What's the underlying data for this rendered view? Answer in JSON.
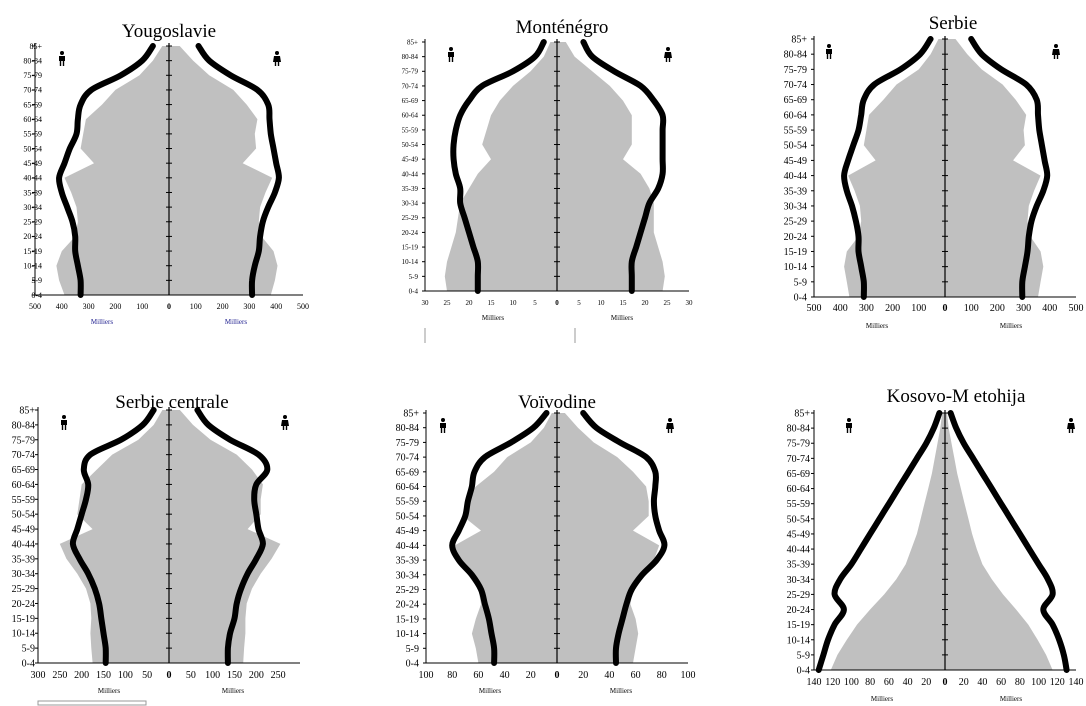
{
  "colors": {
    "background": "#ffffff",
    "area_fill": "#c0c0c0",
    "line": "#000000",
    "axis": "#000000",
    "unit_label_color": "#1a1a8c"
  },
  "icons": {
    "male": "male-figure-icon",
    "female": "female-figure-icon"
  },
  "chart_data": [
    {
      "type": "area",
      "title": "Yougoslavie",
      "age_groups": [
        "0-4",
        "5-9",
        "10-14",
        "15-19",
        "20-24",
        "25-29",
        "30-34",
        "35-39",
        "40-44",
        "45-49",
        "50-54",
        "55-59",
        "60-64",
        "65-69",
        "70-74",
        "75-79",
        "80-84",
        "85+"
      ],
      "x_unit_left": "Milliers",
      "x_unit_right": "Milliers",
      "x_ticks_left": [
        "500",
        "400",
        "300",
        "200",
        "100",
        "0"
      ],
      "x_ticks_right": [
        "100",
        "200",
        "300",
        "400",
        "500"
      ],
      "xlim": [
        0,
        500
      ],
      "series": [
        {
          "side": "left",
          "style": "area",
          "values": [
            390,
            410,
            420,
            400,
            350,
            340,
            345,
            365,
            390,
            280,
            330,
            320,
            310,
            250,
            200,
            110,
            60,
            25
          ]
        },
        {
          "side": "right",
          "style": "area",
          "values": [
            380,
            395,
            405,
            390,
            345,
            335,
            340,
            360,
            385,
            275,
            325,
            320,
            330,
            290,
            240,
            150,
            90,
            40
          ]
        },
        {
          "side": "left",
          "style": "line",
          "values": [
            330,
            330,
            340,
            350,
            350,
            360,
            380,
            400,
            410,
            390,
            370,
            345,
            340,
            330,
            290,
            180,
            100,
            60
          ]
        },
        {
          "side": "right",
          "style": "line",
          "values": [
            310,
            310,
            320,
            335,
            340,
            350,
            370,
            395,
            410,
            400,
            390,
            380,
            375,
            370,
            330,
            230,
            150,
            110
          ]
        }
      ]
    },
    {
      "type": "area",
      "title": "Monténégro",
      "age_groups": [
        "0-4",
        "5-9",
        "10-14",
        "15-19",
        "20-24",
        "25-29",
        "30-34",
        "35-39",
        "40-44",
        "45-49",
        "50-54",
        "55-59",
        "60-64",
        "65-69",
        "70-74",
        "75-79",
        "80-84",
        "85+"
      ],
      "x_unit_left": "Milliers",
      "x_unit_right": "Milliers",
      "x_ticks_left": [
        "30",
        "25",
        "20",
        "15",
        "10",
        "5",
        "0"
      ],
      "x_ticks_right": [
        "5",
        "10",
        "15",
        "20",
        "25",
        "30"
      ],
      "xlim": [
        0,
        30
      ],
      "series": [
        {
          "side": "left",
          "style": "area",
          "values": [
            25,
            25.5,
            25,
            24,
            23,
            22.5,
            22,
            20,
            18,
            15,
            17,
            16,
            15,
            13,
            10,
            6,
            3,
            1.5
          ]
        },
        {
          "side": "right",
          "style": "area",
          "values": [
            24,
            24.5,
            24,
            23,
            22,
            22,
            22,
            21,
            19,
            15,
            17,
            17,
            17,
            15,
            12,
            8,
            4,
            2
          ]
        },
        {
          "side": "left",
          "style": "line",
          "values": [
            18,
            18,
            18,
            19,
            20,
            21,
            22,
            22,
            23,
            23.5,
            23.5,
            23,
            22,
            20,
            17,
            10,
            5,
            3
          ]
        },
        {
          "side": "right",
          "style": "line",
          "values": [
            17,
            17,
            17,
            18,
            19,
            20,
            21,
            23,
            24,
            24,
            24,
            24,
            24,
            22,
            19,
            13,
            8,
            6
          ]
        }
      ]
    },
    {
      "type": "area",
      "title": "Serbie",
      "age_groups": [
        "0-4",
        "5-9",
        "10-14",
        "15-19",
        "20-24",
        "25-29",
        "30-34",
        "35-39",
        "40-44",
        "45-49",
        "50-54",
        "55-59",
        "60-64",
        "65-69",
        "70-74",
        "75-79",
        "80-84",
        "85+"
      ],
      "x_unit_left": "Milliers",
      "x_unit_right": "Milliers",
      "x_ticks_left": [
        "500",
        "400",
        "300",
        "200",
        "100",
        "0"
      ],
      "x_ticks_right": [
        "100",
        "200",
        "300",
        "400",
        "500"
      ],
      "xlim": [
        0,
        500
      ],
      "series": [
        {
          "side": "left",
          "style": "area",
          "values": [
            365,
            375,
            385,
            375,
            330,
            320,
            325,
            345,
            370,
            265,
            310,
            300,
            290,
            235,
            185,
            100,
            55,
            25
          ]
        },
        {
          "side": "right",
          "style": "area",
          "values": [
            355,
            365,
            375,
            365,
            325,
            315,
            320,
            340,
            365,
            260,
            305,
            300,
            310,
            270,
            220,
            140,
            85,
            40
          ]
        },
        {
          "side": "left",
          "style": "line",
          "values": [
            310,
            310,
            320,
            330,
            330,
            340,
            355,
            375,
            385,
            370,
            350,
            330,
            320,
            310,
            270,
            170,
            95,
            55
          ]
        },
        {
          "side": "right",
          "style": "line",
          "values": [
            295,
            295,
            305,
            315,
            320,
            330,
            350,
            375,
            390,
            380,
            370,
            360,
            355,
            350,
            310,
            215,
            140,
            100
          ]
        }
      ]
    },
    {
      "type": "area",
      "title": "Serbie centrale",
      "age_groups": [
        "0-4",
        "5-9",
        "10-14",
        "15-19",
        "20-24",
        "25-29",
        "30-34",
        "35-39",
        "40-44",
        "45-49",
        "50-54",
        "55-59",
        "60-64",
        "65-69",
        "70-74",
        "75-79",
        "80-84",
        "85+"
      ],
      "x_unit_left": "Milliers",
      "x_unit_right": "Milliers",
      "x_ticks_left": [
        "300",
        "250",
        "200",
        "150",
        "100",
        "50",
        "0"
      ],
      "x_ticks_right": [
        "50",
        "100",
        "150",
        "200",
        "250"
      ],
      "xlim": [
        0,
        300
      ],
      "series": [
        {
          "side": "left",
          "style": "area",
          "values": [
            175,
            178,
            180,
            178,
            180,
            190,
            210,
            235,
            250,
            175,
            210,
            205,
            200,
            165,
            130,
            70,
            35,
            15
          ]
        },
        {
          "side": "right",
          "style": "area",
          "values": [
            170,
            172,
            175,
            175,
            178,
            190,
            210,
            235,
            255,
            180,
            210,
            210,
            215,
            190,
            155,
            95,
            55,
            25
          ]
        },
        {
          "side": "left",
          "style": "line",
          "values": [
            145,
            145,
            150,
            155,
            160,
            170,
            185,
            205,
            220,
            210,
            200,
            190,
            185,
            195,
            180,
            110,
            60,
            35
          ]
        },
        {
          "side": "right",
          "style": "line",
          "values": [
            135,
            135,
            140,
            150,
            155,
            165,
            180,
            200,
            215,
            205,
            200,
            195,
            200,
            225,
            205,
            140,
            90,
            65
          ]
        }
      ]
    },
    {
      "type": "area",
      "title": "Voïvodine",
      "age_groups": [
        "0-4",
        "5-9",
        "10-14",
        "15-19",
        "20-24",
        "25-29",
        "30-34",
        "35-39",
        "40-44",
        "45-49",
        "50-54",
        "55-59",
        "60-64",
        "65-69",
        "70-74",
        "75-79",
        "80-84",
        "85+"
      ],
      "x_unit_left": "Milliers",
      "x_unit_right": "Milliers",
      "x_ticks_left": [
        "100",
        "80",
        "60",
        "40",
        "20",
        "0"
      ],
      "x_ticks_right": [
        "20",
        "40",
        "60",
        "80",
        "100"
      ],
      "xlim": [
        0,
        100
      ],
      "series": [
        {
          "side": "left",
          "style": "area",
          "values": [
            60,
            62,
            65,
            62,
            58,
            60,
            68,
            75,
            78,
            58,
            72,
            70,
            62,
            48,
            38,
            20,
            10,
            4
          ]
        },
        {
          "side": "right",
          "style": "area",
          "values": [
            58,
            60,
            62,
            60,
            56,
            58,
            66,
            74,
            78,
            58,
            70,
            70,
            68,
            58,
            46,
            28,
            16,
            6
          ]
        },
        {
          "side": "left",
          "style": "line",
          "values": [
            48,
            48,
            50,
            52,
            55,
            58,
            65,
            75,
            80,
            75,
            70,
            68,
            65,
            63,
            55,
            35,
            18,
            8
          ]
        },
        {
          "side": "right",
          "style": "line",
          "values": [
            45,
            45,
            47,
            50,
            53,
            57,
            65,
            76,
            82,
            78,
            75,
            74,
            75,
            75,
            68,
            48,
            30,
            20
          ]
        }
      ]
    },
    {
      "type": "area",
      "title": "Kosovo-M etohija",
      "age_groups": [
        "0-4",
        "5-9",
        "10-14",
        "15-19",
        "20-24",
        "25-29",
        "30-34",
        "35-39",
        "40-44",
        "45-49",
        "50-54",
        "55-59",
        "60-64",
        "65-69",
        "70-74",
        "75-79",
        "80-84",
        "85+"
      ],
      "x_unit_left": "Milliers",
      "x_unit_right": "Milliers",
      "x_ticks_left": [
        "140",
        "120",
        "100",
        "80",
        "60",
        "40",
        "20",
        "0"
      ],
      "x_ticks_right": [
        "20",
        "40",
        "60",
        "80",
        "100",
        "120",
        "140"
      ],
      "xlim": [
        0,
        140
      ],
      "series": [
        {
          "side": "left",
          "style": "area",
          "values": [
            122,
            115,
            105,
            94,
            80,
            65,
            52,
            42,
            36,
            30,
            26,
            22,
            18,
            14,
            11,
            8,
            5,
            3
          ]
        },
        {
          "side": "right",
          "style": "area",
          "values": [
            115,
            108,
            99,
            89,
            76,
            62,
            50,
            40,
            34,
            29,
            25,
            21,
            17,
            13,
            10,
            7,
            4,
            2
          ]
        },
        {
          "side": "left",
          "style": "line",
          "values": [
            135,
            130,
            125,
            118,
            108,
            118,
            112,
            100,
            90,
            80,
            70,
            60,
            50,
            40,
            30,
            20,
            12,
            6
          ]
        },
        {
          "side": "right",
          "style": "line",
          "values": [
            130,
            127,
            122,
            115,
            105,
            115,
            110,
            100,
            90,
            80,
            70,
            60,
            50,
            40,
            30,
            20,
            12,
            6
          ]
        }
      ]
    }
  ]
}
